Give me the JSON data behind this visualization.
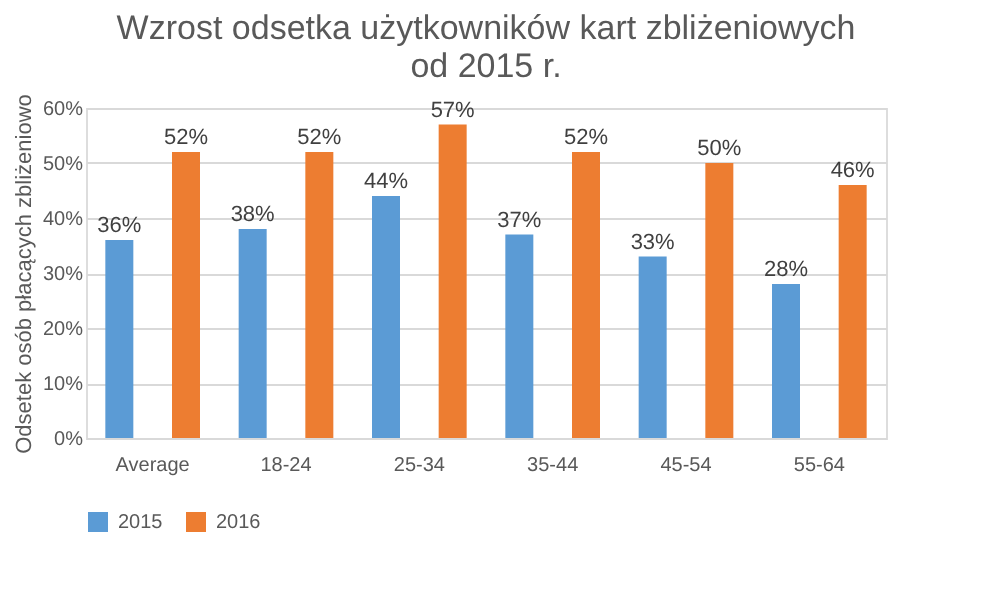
{
  "chart_data": {
    "type": "bar",
    "title": "Wzrost odsetka użytkowników kart zbliżeniowych od 2015 r.",
    "ylabel": "Odsetek osób płacących zbliżeniowo",
    "categories": [
      "Average",
      "18-24",
      "25-34",
      "35-44",
      "45-54",
      "55-64"
    ],
    "series": [
      {
        "name": "2015",
        "color": "#5b9bd5",
        "values": [
          36,
          38,
          44,
          37,
          33,
          28
        ],
        "value_labels": [
          "36%",
          "38%",
          "44%",
          "37%",
          "33%",
          "28%"
        ]
      },
      {
        "name": "2016",
        "color": "#ed7d31",
        "values": [
          52,
          52,
          57,
          52,
          50,
          46
        ],
        "value_labels": [
          "52%",
          "52%",
          "57%",
          "52%",
          "50%",
          "46%"
        ]
      }
    ],
    "ylim": [
      0,
      60
    ],
    "yticks": [
      {
        "value": 0,
        "label": "0%"
      },
      {
        "value": 10,
        "label": "10%"
      },
      {
        "value": 20,
        "label": "20%"
      },
      {
        "value": 30,
        "label": "30%"
      },
      {
        "value": 40,
        "label": "40%"
      },
      {
        "value": 50,
        "label": "50%"
      },
      {
        "value": 60,
        "label": "60%"
      }
    ],
    "grid": "y",
    "legend": "bottom"
  }
}
